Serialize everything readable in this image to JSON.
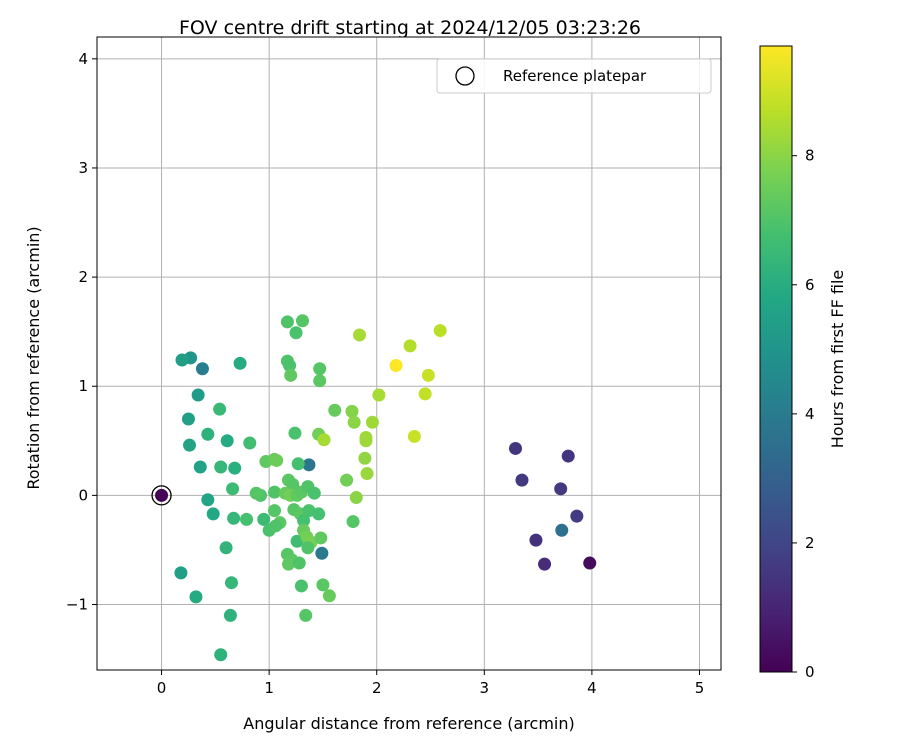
{
  "chart_data": {
    "type": "scatter",
    "title": "FOV centre drift starting at 2024/12/05 03:23:26",
    "xlabel": "Angular distance from reference (arcmin)",
    "ylabel": "Rotation from reference (arcmin)",
    "xlim": [
      -0.6,
      5.2
    ],
    "ylim": [
      -1.6,
      4.2
    ],
    "xticks": [
      0,
      1,
      2,
      3,
      4,
      5
    ],
    "yticks": [
      -1,
      0,
      1,
      2,
      3,
      4
    ],
    "grid": true,
    "legend": {
      "placement": "upper right",
      "entries": [
        "Reference platepar"
      ]
    },
    "colorbar": {
      "label": "Hours from first FF file",
      "colormap": "viridis",
      "range": [
        0,
        9.7
      ],
      "ticks": [
        0,
        2,
        4,
        6,
        8
      ]
    },
    "reference_point": {
      "x": 0,
      "y": 0,
      "c": 0.1
    },
    "points": [
      {
        "x": 3.98,
        "y": -0.62,
        "c": 0.3
      },
      {
        "x": 3.56,
        "y": -0.63,
        "c": 1.2
      },
      {
        "x": 3.48,
        "y": -0.41,
        "c": 1.4
      },
      {
        "x": 3.29,
        "y": 0.43,
        "c": 1.5
      },
      {
        "x": 3.35,
        "y": 0.14,
        "c": 1.6
      },
      {
        "x": 3.71,
        "y": 0.06,
        "c": 1.6
      },
      {
        "x": 3.78,
        "y": 0.36,
        "c": 1.5
      },
      {
        "x": 3.86,
        "y": -0.19,
        "c": 1.7
      },
      {
        "x": 3.72,
        "y": -0.32,
        "c": 3.6
      },
      {
        "x": 1.37,
        "y": 0.28,
        "c": 3.8
      },
      {
        "x": 1.49,
        "y": -0.53,
        "c": 3.9
      },
      {
        "x": 0.38,
        "y": 1.16,
        "c": 4.1
      },
      {
        "x": 0.27,
        "y": 1.26,
        "c": 5.0
      },
      {
        "x": 0.19,
        "y": 1.24,
        "c": 5.4
      },
      {
        "x": 0.34,
        "y": 0.92,
        "c": 5.3
      },
      {
        "x": 0.25,
        "y": 0.7,
        "c": 5.5
      },
      {
        "x": 0.26,
        "y": 0.46,
        "c": 5.6
      },
      {
        "x": 0.36,
        "y": 0.26,
        "c": 5.6
      },
      {
        "x": 0.43,
        "y": -0.04,
        "c": 5.7
      },
      {
        "x": 0.48,
        "y": -0.17,
        "c": 5.8
      },
      {
        "x": 0.18,
        "y": -0.71,
        "c": 5.5
      },
      {
        "x": 0.32,
        "y": -0.93,
        "c": 5.9
      },
      {
        "x": 0.73,
        "y": 1.21,
        "c": 5.9
      },
      {
        "x": 0.61,
        "y": 0.5,
        "c": 5.9
      },
      {
        "x": 0.43,
        "y": 0.56,
        "c": 6.2
      },
      {
        "x": 0.68,
        "y": 0.25,
        "c": 6.1
      },
      {
        "x": 0.6,
        "y": -0.48,
        "c": 6.3
      },
      {
        "x": 0.65,
        "y": -0.8,
        "c": 6.4
      },
      {
        "x": 0.64,
        "y": -1.1,
        "c": 6.2
      },
      {
        "x": 0.55,
        "y": -1.46,
        "c": 6.2
      },
      {
        "x": 0.54,
        "y": 0.79,
        "c": 6.5
      },
      {
        "x": 0.55,
        "y": 0.26,
        "c": 6.4
      },
      {
        "x": 0.66,
        "y": 0.06,
        "c": 6.6
      },
      {
        "x": 0.67,
        "y": -0.21,
        "c": 6.4
      },
      {
        "x": 0.82,
        "y": 0.48,
        "c": 6.7
      },
      {
        "x": 0.79,
        "y": -0.22,
        "c": 6.8
      },
      {
        "x": 0.95,
        "y": -0.22,
        "c": 6.6
      },
      {
        "x": 1.0,
        "y": -0.32,
        "c": 6.9
      },
      {
        "x": 0.92,
        "y": 0.0,
        "c": 7.0
      },
      {
        "x": 0.88,
        "y": 0.02,
        "c": 7.1
      },
      {
        "x": 0.97,
        "y": 0.31,
        "c": 7.3
      },
      {
        "x": 1.05,
        "y": 0.33,
        "c": 7.4
      },
      {
        "x": 1.07,
        "y": 0.32,
        "c": 7.5
      },
      {
        "x": 1.05,
        "y": 0.03,
        "c": 7.0
      },
      {
        "x": 1.05,
        "y": -0.14,
        "c": 7.1
      },
      {
        "x": 1.1,
        "y": -0.25,
        "c": 7.2
      },
      {
        "x": 1.06,
        "y": -0.28,
        "c": 7.0
      },
      {
        "x": 1.17,
        "y": 1.59,
        "c": 7.0
      },
      {
        "x": 1.31,
        "y": 1.6,
        "c": 7.1
      },
      {
        "x": 1.25,
        "y": 1.49,
        "c": 6.9
      },
      {
        "x": 1.17,
        "y": 1.23,
        "c": 7.0
      },
      {
        "x": 1.19,
        "y": 1.19,
        "c": 6.9
      },
      {
        "x": 1.2,
        "y": 1.1,
        "c": 7.3
      },
      {
        "x": 1.24,
        "y": 0.57,
        "c": 6.9
      },
      {
        "x": 1.27,
        "y": 0.29,
        "c": 6.8
      },
      {
        "x": 1.18,
        "y": 0.14,
        "c": 7.2
      },
      {
        "x": 1.22,
        "y": 0.1,
        "c": 7.1
      },
      {
        "x": 1.15,
        "y": 0.02,
        "c": 7.4
      },
      {
        "x": 1.2,
        "y": 0.0,
        "c": 7.6
      },
      {
        "x": 1.26,
        "y": 0.0,
        "c": 7.3
      },
      {
        "x": 1.3,
        "y": 0.03,
        "c": 7.2
      },
      {
        "x": 1.36,
        "y": 0.08,
        "c": 7.0
      },
      {
        "x": 1.42,
        "y": 0.02,
        "c": 6.9
      },
      {
        "x": 1.23,
        "y": -0.13,
        "c": 7.1
      },
      {
        "x": 1.29,
        "y": -0.17,
        "c": 7.2
      },
      {
        "x": 1.32,
        "y": -0.23,
        "c": 6.8
      },
      {
        "x": 1.37,
        "y": -0.14,
        "c": 6.9
      },
      {
        "x": 1.46,
        "y": -0.17,
        "c": 6.8
      },
      {
        "x": 1.26,
        "y": -0.42,
        "c": 6.7
      },
      {
        "x": 1.32,
        "y": -0.32,
        "c": 7.4
      },
      {
        "x": 1.35,
        "y": -0.38,
        "c": 7.6
      },
      {
        "x": 1.39,
        "y": -0.43,
        "c": 7.7
      },
      {
        "x": 1.48,
        "y": -0.39,
        "c": 7.3
      },
      {
        "x": 1.36,
        "y": -0.48,
        "c": 7.0
      },
      {
        "x": 1.17,
        "y": -0.54,
        "c": 7.1
      },
      {
        "x": 1.21,
        "y": -0.59,
        "c": 7.2
      },
      {
        "x": 1.18,
        "y": -0.63,
        "c": 7.3
      },
      {
        "x": 1.28,
        "y": -0.62,
        "c": 7.0
      },
      {
        "x": 1.3,
        "y": -0.83,
        "c": 6.9
      },
      {
        "x": 1.34,
        "y": -1.1,
        "c": 7.1
      },
      {
        "x": 1.5,
        "y": -0.82,
        "c": 7.2
      },
      {
        "x": 1.56,
        "y": -0.92,
        "c": 7.4
      },
      {
        "x": 1.47,
        "y": 1.16,
        "c": 7.1
      },
      {
        "x": 1.47,
        "y": 1.05,
        "c": 7.2
      },
      {
        "x": 1.61,
        "y": 0.78,
        "c": 7.4
      },
      {
        "x": 1.46,
        "y": 0.56,
        "c": 7.6
      },
      {
        "x": 1.51,
        "y": 0.51,
        "c": 8.4
      },
      {
        "x": 1.72,
        "y": 0.14,
        "c": 7.6
      },
      {
        "x": 1.78,
        "y": -0.24,
        "c": 7.1
      },
      {
        "x": 1.81,
        "y": -0.02,
        "c": 8.0
      },
      {
        "x": 1.77,
        "y": 0.77,
        "c": 7.9
      },
      {
        "x": 1.79,
        "y": 0.67,
        "c": 8.0
      },
      {
        "x": 1.9,
        "y": 0.53,
        "c": 8.3
      },
      {
        "x": 1.9,
        "y": 0.5,
        "c": 8.3
      },
      {
        "x": 1.89,
        "y": 0.34,
        "c": 8.1
      },
      {
        "x": 1.91,
        "y": 0.2,
        "c": 8.2
      },
      {
        "x": 1.96,
        "y": 0.67,
        "c": 8.3
      },
      {
        "x": 2.02,
        "y": 0.92,
        "c": 8.4
      },
      {
        "x": 1.84,
        "y": 1.47,
        "c": 8.4
      },
      {
        "x": 2.18,
        "y": 1.19,
        "c": 9.7
      },
      {
        "x": 2.31,
        "y": 1.37,
        "c": 8.6
      },
      {
        "x": 2.45,
        "y": 0.93,
        "c": 8.8
      },
      {
        "x": 2.48,
        "y": 1.1,
        "c": 8.9
      },
      {
        "x": 2.59,
        "y": 1.51,
        "c": 8.7
      },
      {
        "x": 2.35,
        "y": 0.54,
        "c": 8.9
      }
    ]
  }
}
